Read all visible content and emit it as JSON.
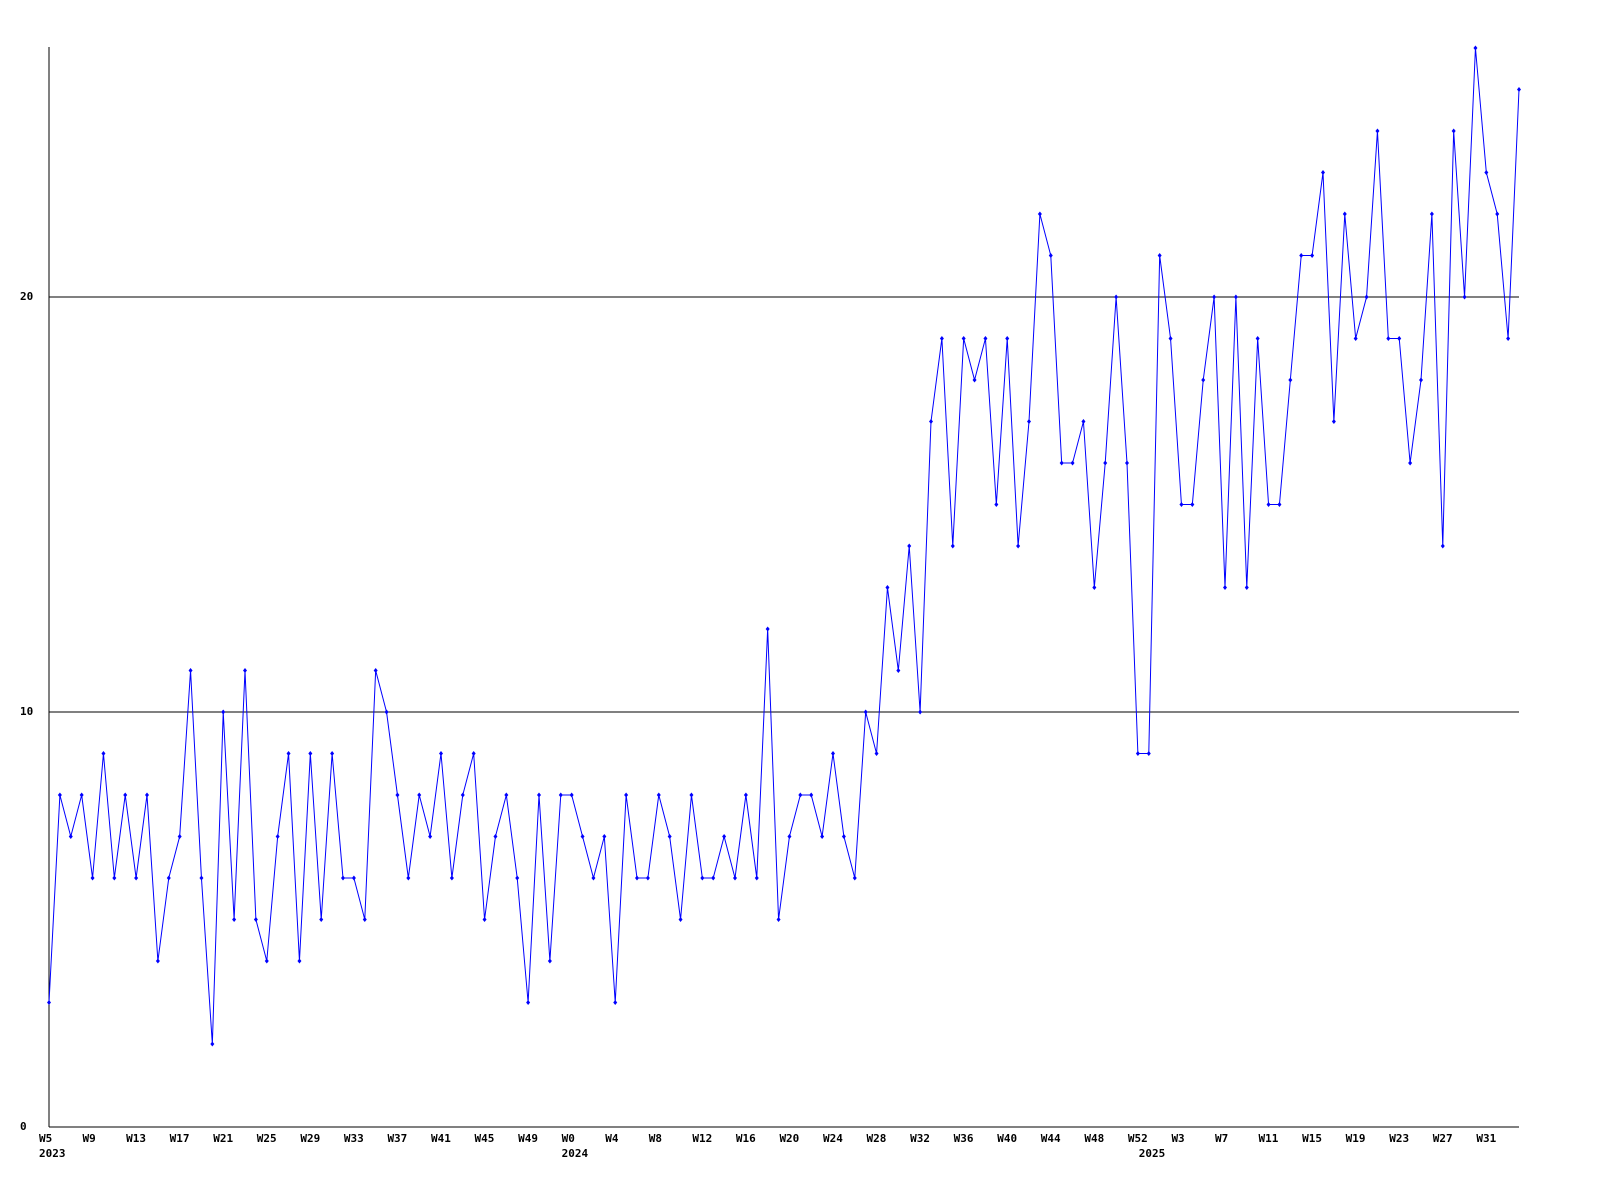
{
  "chart_data": {
    "type": "line",
    "categories": [
      "W5",
      null,
      null,
      null,
      "W9",
      null,
      null,
      null,
      "W13",
      null,
      null,
      null,
      "W17",
      null,
      null,
      null,
      "W21",
      null,
      null,
      null,
      "W25",
      null,
      null,
      null,
      "W29",
      null,
      null,
      null,
      "W33",
      null,
      null,
      null,
      "W37",
      null,
      null,
      null,
      "W41",
      null,
      null,
      null,
      "W45",
      null,
      null,
      null,
      "W49",
      null,
      null,
      null,
      "W0",
      null,
      null,
      null,
      "W4",
      null,
      null,
      null,
      "W8",
      null,
      null,
      null,
      "W12",
      null,
      null,
      null,
      "W16",
      null,
      null,
      null,
      "W20",
      null,
      null,
      null,
      "W24",
      null,
      null,
      null,
      "W28",
      null,
      null,
      null,
      "W32",
      null,
      null,
      null,
      "W36",
      null,
      null,
      null,
      "W40",
      null,
      null,
      null,
      "W44",
      null,
      null,
      null,
      "W48",
      null,
      null,
      null,
      "W52",
      null,
      null,
      null,
      "W3",
      null,
      null,
      null,
      "W7",
      null,
      null,
      null,
      "W11",
      null,
      null,
      null,
      "W15",
      null,
      null,
      null,
      "W19",
      null,
      null,
      null,
      "W23",
      null,
      null,
      null,
      "W27",
      null,
      null,
      null,
      "W31",
      null,
      null,
      null
    ],
    "category_years": [
      "2023",
      null,
      null,
      null,
      null,
      null,
      null,
      null,
      null,
      null,
      null,
      null,
      null,
      null,
      null,
      null,
      null,
      null,
      null,
      null,
      null,
      null,
      null,
      null,
      null,
      null,
      null,
      null,
      null,
      null,
      null,
      null,
      null,
      null,
      null,
      null,
      null,
      null,
      null,
      null,
      null,
      null,
      null,
      null,
      null,
      null,
      null,
      null,
      "2024",
      null,
      null,
      null,
      null,
      null,
      null,
      null,
      null,
      null,
      null,
      null,
      null,
      null,
      null,
      null,
      null,
      null,
      null,
      null,
      null,
      null,
      null,
      null,
      null,
      null,
      null,
      null,
      null,
      null,
      null,
      null,
      null,
      null,
      null,
      null,
      null,
      null,
      null,
      null,
      null,
      null,
      null,
      null,
      null,
      null,
      null,
      null,
      null,
      null,
      null,
      null,
      null,
      "2025",
      null,
      null,
      null,
      null,
      null,
      null,
      null,
      null,
      null,
      null,
      null,
      null,
      null,
      null,
      null,
      null,
      null,
      null,
      null,
      null,
      null,
      null,
      null,
      null,
      null,
      null,
      null,
      null,
      null,
      null,
      null,
      null,
      null,
      null
    ],
    "series": [
      {
        "color": "#0000ff",
        "values": [
          3,
          8,
          7,
          8,
          6,
          9,
          6,
          8,
          6,
          8,
          4,
          6,
          7,
          11,
          6,
          2,
          10,
          5,
          11,
          5,
          4,
          7,
          9,
          4,
          9,
          5,
          9,
          6,
          6,
          5,
          11,
          10,
          8,
          6,
          8,
          7,
          9,
          6,
          8,
          9,
          5,
          7,
          8,
          6,
          3,
          8,
          4,
          8,
          8,
          7,
          6,
          7,
          3,
          8,
          6,
          6,
          8,
          7,
          5,
          8,
          6,
          6,
          7,
          6,
          8,
          6,
          12,
          5,
          7,
          8,
          8,
          7,
          9,
          7,
          6,
          10,
          9,
          13,
          11,
          14,
          10,
          17,
          19,
          14,
          19,
          18,
          19,
          15,
          19,
          14,
          17,
          22,
          21,
          16,
          16,
          17,
          13,
          16,
          20,
          16,
          9,
          9,
          21,
          19,
          15,
          15,
          18,
          20,
          13,
          20,
          13,
          19,
          15,
          15,
          18,
          21,
          21,
          23,
          17,
          22,
          19,
          20,
          24,
          19,
          19,
          16,
          18,
          22,
          14,
          24,
          20,
          26,
          23,
          22,
          19,
          25
        ]
      }
    ],
    "ylim": [
      0,
      26
    ],
    "yticks": [
      0,
      10,
      20
    ],
    "grid": true
  }
}
